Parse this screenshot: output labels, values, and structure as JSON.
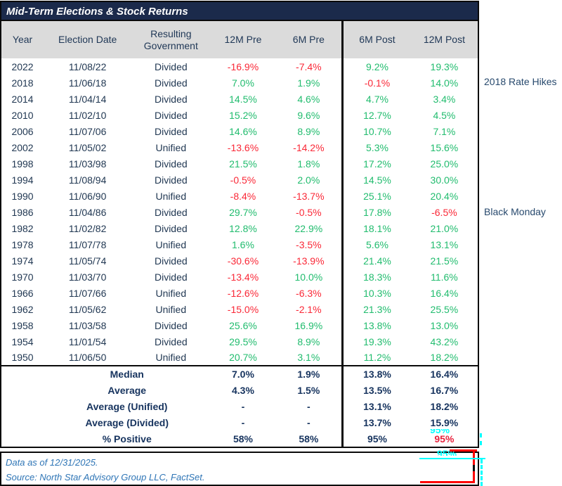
{
  "colors": {
    "title_bar_bg": "#1b2a4b",
    "header_bg": "#dbdbdb",
    "navy_text": "#1f3756",
    "positive": "#21bc6e",
    "negative": "#fa2837",
    "footer_blue": "#2e75b6",
    "artifact_red": "#ff0000",
    "artifact_cyan": "#00ffff"
  },
  "chart_data": {
    "type": "table",
    "title": "Mid-Term Elections & Stock Returns",
    "columns": [
      "Year",
      "Election Date",
      "Resulting Government",
      "12M Pre",
      "6M Pre",
      "6M Post",
      "12M Post"
    ],
    "rows": [
      [
        "2022",
        "11/08/22",
        "Divided",
        "-16.9%",
        "-7.4%",
        "9.2%",
        "19.3%"
      ],
      [
        "2018",
        "11/06/18",
        "Divided",
        "7.0%",
        "1.9%",
        "-0.1%",
        "14.0%"
      ],
      [
        "2014",
        "11/04/14",
        "Divided",
        "14.5%",
        "4.6%",
        "4.7%",
        "3.4%"
      ],
      [
        "2010",
        "11/02/10",
        "Divided",
        "15.2%",
        "9.6%",
        "12.7%",
        "4.5%"
      ],
      [
        "2006",
        "11/07/06",
        "Divided",
        "14.6%",
        "8.9%",
        "10.7%",
        "7.1%"
      ],
      [
        "2002",
        "11/05/02",
        "Unified",
        "-13.6%",
        "-14.2%",
        "5.3%",
        "15.6%"
      ],
      [
        "1998",
        "11/03/98",
        "Divided",
        "21.5%",
        "1.8%",
        "17.2%",
        "25.0%"
      ],
      [
        "1994",
        "11/08/94",
        "Divided",
        "-0.5%",
        "2.0%",
        "14.5%",
        "30.0%"
      ],
      [
        "1990",
        "11/06/90",
        "Unified",
        "-8.4%",
        "-13.7%",
        "25.1%",
        "20.4%"
      ],
      [
        "1986",
        "11/04/86",
        "Divided",
        "29.7%",
        "-0.5%",
        "17.8%",
        "-6.5%"
      ],
      [
        "1982",
        "11/02/82",
        "Divided",
        "12.8%",
        "22.9%",
        "18.1%",
        "21.0%"
      ],
      [
        "1978",
        "11/07/78",
        "Unified",
        "1.6%",
        "-3.5%",
        "5.6%",
        "13.1%"
      ],
      [
        "1974",
        "11/05/74",
        "Divided",
        "-30.6%",
        "-13.9%",
        "21.4%",
        "21.5%"
      ],
      [
        "1970",
        "11/03/70",
        "Divided",
        "-13.4%",
        "10.0%",
        "18.3%",
        "11.6%"
      ],
      [
        "1966",
        "11/07/66",
        "Unified",
        "-12.6%",
        "-6.3%",
        "10.3%",
        "16.4%"
      ],
      [
        "1962",
        "11/05/62",
        "Unified",
        "-15.0%",
        "-2.1%",
        "21.3%",
        "25.5%"
      ],
      [
        "1958",
        "11/03/58",
        "Divided",
        "25.6%",
        "16.9%",
        "13.8%",
        "13.0%"
      ],
      [
        "1954",
        "11/01/54",
        "Divided",
        "29.5%",
        "8.9%",
        "19.3%",
        "43.2%"
      ],
      [
        "1950",
        "11/06/50",
        "Unified",
        "20.7%",
        "3.1%",
        "11.2%",
        "18.2%"
      ]
    ],
    "summary_rows": [
      {
        "label": "Median",
        "values": [
          "7.0%",
          "1.9%",
          "13.8%",
          "16.4%"
        ],
        "red_last": false
      },
      {
        "label": "Average",
        "values": [
          "4.3%",
          "1.5%",
          "13.5%",
          "16.7%"
        ],
        "red_last": false
      },
      {
        "label": "Average (Unified)",
        "values": [
          "-",
          "-",
          "13.1%",
          "18.2%"
        ],
        "red_last": false
      },
      {
        "label": "Average (Divided)",
        "values": [
          "-",
          "-",
          "13.7%",
          "15.9%"
        ],
        "red_last": false
      },
      {
        "label": "% Positive",
        "values": [
          "58%",
          "58%",
          "95%",
          "95%"
        ],
        "red_last": true
      }
    ]
  },
  "annotations": {
    "rate_hikes": "2018 Rate Hikes",
    "black_monday": "Black Monday"
  },
  "footer": {
    "line1": "Data as of 12/31/2025.",
    "line2": "Source: North Star Advisory Group LLC, FactSet."
  },
  "overlay_artifacts": {
    "ghost_fragment_top": "95%",
    "ghost_fragment_bottom": "95%"
  }
}
